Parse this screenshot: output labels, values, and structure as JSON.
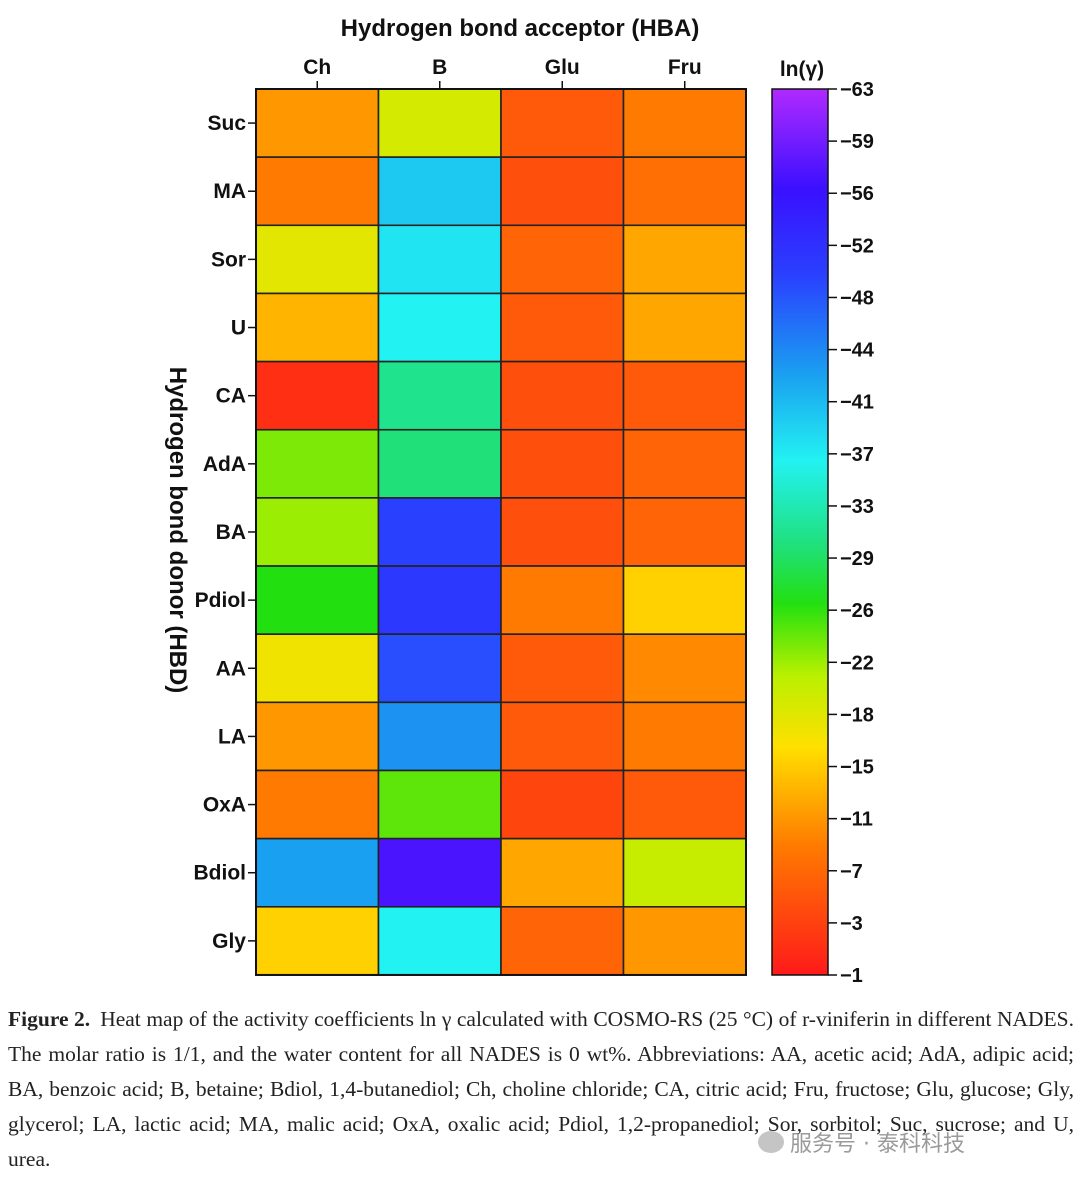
{
  "chart_data": {
    "type": "heatmap",
    "title": "Hydrogen bond acceptor (HBA)",
    "ylabel": "Hydrogen bond donor (HBD)",
    "columns": [
      "Ch",
      "B",
      "Glu",
      "Fru"
    ],
    "rows": [
      "Suc",
      "MA",
      "Sor",
      "U",
      "CA",
      "AdA",
      "BA",
      "Pdiol",
      "AA",
      "LA",
      "OxA",
      "Bdiol",
      "Gly"
    ],
    "values": [
      [
        -12,
        -20,
        -7,
        -10
      ],
      [
        -10,
        -40,
        -6,
        -9
      ],
      [
        -19,
        -38,
        -8,
        -13
      ],
      [
        -14,
        -37,
        -7,
        -13
      ],
      [
        -3,
        -32,
        -6,
        -7
      ],
      [
        -24,
        -31,
        -6,
        -8
      ],
      [
        -23,
        -50,
        -6,
        -8
      ],
      [
        -27,
        -51,
        -10,
        -16
      ],
      [
        -18,
        -49,
        -7,
        -11
      ],
      [
        -12,
        -44,
        -7,
        -10
      ],
      [
        -10,
        -25,
        -5,
        -7
      ],
      [
        -43,
        -57,
        -13,
        -21
      ],
      [
        -16,
        -37,
        -8,
        -12
      ]
    ],
    "colorbar": {
      "label": "ln(γ)",
      "range": [
        -63,
        -1
      ],
      "ticks": [
        "−63",
        "−59",
        "−56",
        "−52",
        "−48",
        "−44",
        "−41",
        "−37",
        "−33",
        "−29",
        "−26",
        "−22",
        "−18",
        "−15",
        "−11",
        "−7",
        "−3",
        "−1"
      ],
      "stops": [
        {
          "v": -1,
          "color": "#ff1a1a"
        },
        {
          "v": -10,
          "color": "#ff7a00"
        },
        {
          "v": -17,
          "color": "#ffe000"
        },
        {
          "v": -22,
          "color": "#b8f000"
        },
        {
          "v": -27,
          "color": "#22e010"
        },
        {
          "v": -31,
          "color": "#20e07a"
        },
        {
          "v": -37,
          "color": "#22f2f2"
        },
        {
          "v": -43,
          "color": "#1aa0f0"
        },
        {
          "v": -50,
          "color": "#2a40ff"
        },
        {
          "v": -56,
          "color": "#3a10ff"
        },
        {
          "v": -63,
          "color": "#b02aff"
        }
      ]
    }
  },
  "caption": {
    "label": "Figure 2.",
    "text": "Heat map of the activity coefficients ln γ calculated with COSMO-RS (25 °C) of r-viniferin in different NADES. The molar ratio is 1/1, and the water content for all NADES is 0 wt%. Abbreviations: AA, acetic acid; AdA, adipic acid; BA, benzoic acid; B, betaine; Bdiol, 1,4-butanediol; Ch, choline chloride; CA, citric acid; Fru, fructose; Glu, glucose; Gly, glycerol; LA, lactic acid; MA, malic acid; OxA, oxalic acid; Pdiol, 1,2-propanediol; Sor, sorbitol; Suc, sucrose; and U, urea."
  },
  "watermark": {
    "text": "服务号 · 泰科科技"
  }
}
